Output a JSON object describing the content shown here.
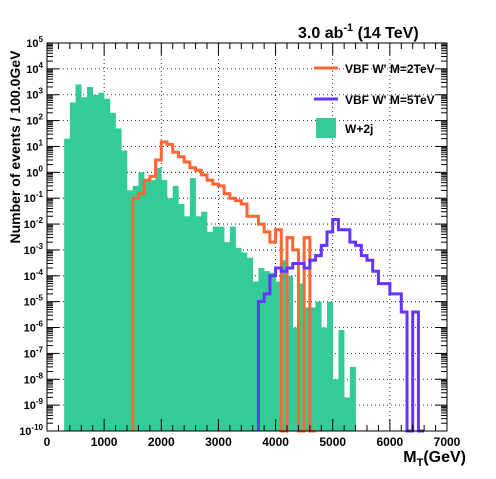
{
  "chart_data": {
    "type": "histogram",
    "title": "3.0 ab",
    "title_sup": "-1",
    "title_suffix": " (14 TeV)",
    "xlabel": "M",
    "xlabel_sub": "T",
    "xlabel_suffix": "(GeV)",
    "ylabel": "Number of events / 100.0GeV",
    "xlim": [
      0,
      7000
    ],
    "ylog_range": [
      -10,
      5
    ],
    "log_scale_y": true,
    "grid": true,
    "legend_position": "top-right",
    "bin_width": 100,
    "x_ticks": [
      "0",
      "1000",
      "2000",
      "3000",
      "4000",
      "5000",
      "6000",
      "7000"
    ],
    "y_tick_exponents": [
      "-10",
      "-9",
      "-8",
      "-7",
      "-6",
      "-5",
      "-4",
      "-3",
      "-2",
      "-1",
      "0",
      "1",
      "2",
      "3",
      "4",
      "5"
    ],
    "colors": {
      "bkg": "#33cc99",
      "m2": "#ff6633",
      "m5": "#6633ff"
    },
    "legend": [
      {
        "label": "VBF W' M=2TeV",
        "style": "line",
        "color": "#ff6633"
      },
      {
        "label": "VBF W' M=5TeV",
        "style": "line",
        "color": "#6633ff"
      },
      {
        "label": "W+2j",
        "style": "fill",
        "color": "#33cc99"
      }
    ],
    "series": [
      {
        "name": "W+2j",
        "style": "fill",
        "bins": [
          [
            300,
            20
          ],
          [
            400,
            500
          ],
          [
            500,
            2500
          ],
          [
            600,
            800
          ],
          [
            700,
            2000
          ],
          [
            800,
            1000
          ],
          [
            900,
            1200
          ],
          [
            1000,
            700
          ],
          [
            1100,
            200
          ],
          [
            1200,
            50
          ],
          [
            1300,
            7
          ],
          [
            1400,
            0.2
          ],
          [
            1500,
            0.3
          ],
          [
            1600,
            1
          ],
          [
            1700,
            0.5
          ],
          [
            1800,
            0.5
          ],
          [
            1900,
            1.5
          ],
          [
            2000,
            0.5
          ],
          [
            2100,
            0.1
          ],
          [
            2200,
            0.3
          ],
          [
            2300,
            0.06
          ],
          [
            2400,
            0.02
          ],
          [
            2500,
            0.6
          ],
          [
            2600,
            0.02
          ],
          [
            2700,
            0.03
          ],
          [
            2800,
            0.005
          ],
          [
            2900,
            0.008
          ],
          [
            3000,
            0.008
          ],
          [
            3100,
            0.002
          ],
          [
            3200,
            0.008
          ],
          [
            3300,
            0.0012
          ],
          [
            3400,
            0.0008
          ],
          [
            3500,
            0.0005
          ],
          [
            3600,
            6e-05
          ],
          [
            3700,
            0.0002
          ],
          [
            3800,
            0.00015
          ],
          [
            3900,
            0.00013
          ],
          [
            4000,
            6e-05
          ],
          [
            4100,
            0.0004
          ],
          [
            4200,
            0.0001
          ],
          [
            4300,
            1e-06
          ],
          [
            4400,
            5e-05
          ],
          [
            4500,
            6e-06
          ],
          [
            4600,
            6e-06
          ],
          [
            4700,
            1e-05
          ],
          [
            4800,
            1e-06
          ],
          [
            4900,
            1e-05
          ],
          [
            5000,
            1e-08
          ],
          [
            5100,
            8e-07
          ],
          [
            5200,
            2e-09
          ],
          [
            5300,
            3e-08
          ]
        ]
      },
      {
        "name": "VBF W' M=2TeV",
        "style": "step",
        "bins": [
          [
            1500,
            0.1
          ],
          [
            1600,
            0.15
          ],
          [
            1700,
            0.5
          ],
          [
            1800,
            0.7
          ],
          [
            1900,
            3
          ],
          [
            2000,
            15
          ],
          [
            2100,
            12
          ],
          [
            2200,
            6
          ],
          [
            2300,
            4
          ],
          [
            2400,
            2.5
          ],
          [
            2500,
            1.5
          ],
          [
            2600,
            1.2
          ],
          [
            2700,
            0.8
          ],
          [
            2800,
            0.5
          ],
          [
            2900,
            0.35
          ],
          [
            3000,
            0.3
          ],
          [
            3100,
            0.15
          ],
          [
            3200,
            0.1
          ],
          [
            3300,
            0.08
          ],
          [
            3400,
            0.06
          ],
          [
            3500,
            0.02
          ],
          [
            3600,
            0.02
          ],
          [
            3700,
            0.01
          ],
          [
            3800,
            0.005
          ],
          [
            3900,
            0.002
          ],
          [
            4000,
            0.006
          ],
          [
            4100,
            1e-10
          ],
          [
            4200,
            0.003
          ],
          [
            4300,
            0.001
          ],
          [
            4400,
            1e-10
          ],
          [
            4500,
            0.003
          ],
          [
            4600,
            1e-10
          ]
        ]
      },
      {
        "name": "VBF W' M=5TeV",
        "style": "step",
        "bins": [
          [
            3700,
            1e-05
          ],
          [
            3800,
            2e-05
          ],
          [
            3900,
            0.0001
          ],
          [
            4000,
            0.0002
          ],
          [
            4100,
            0.00015
          ],
          [
            4200,
            0.0002
          ],
          [
            4300,
            0.0003
          ],
          [
            4400,
            0.0003
          ],
          [
            4500,
            0.0002
          ],
          [
            4600,
            0.0004
          ],
          [
            4700,
            0.0006
          ],
          [
            4800,
            0.0015
          ],
          [
            4900,
            0.005
          ],
          [
            5000,
            0.015
          ],
          [
            5100,
            0.006
          ],
          [
            5200,
            0.006
          ],
          [
            5300,
            0.002
          ],
          [
            5400,
            0.0015
          ],
          [
            5500,
            0.0006
          ],
          [
            5600,
            0.0004
          ],
          [
            5700,
            0.00015
          ],
          [
            5800,
            5e-05
          ],
          [
            5900,
            5e-05
          ],
          [
            6000,
            2e-05
          ],
          [
            6100,
            2e-05
          ],
          [
            6200,
            4e-06
          ],
          [
            6300,
            1e-10
          ],
          [
            6400,
            4e-06
          ],
          [
            6500,
            1e-10
          ]
        ]
      }
    ]
  }
}
